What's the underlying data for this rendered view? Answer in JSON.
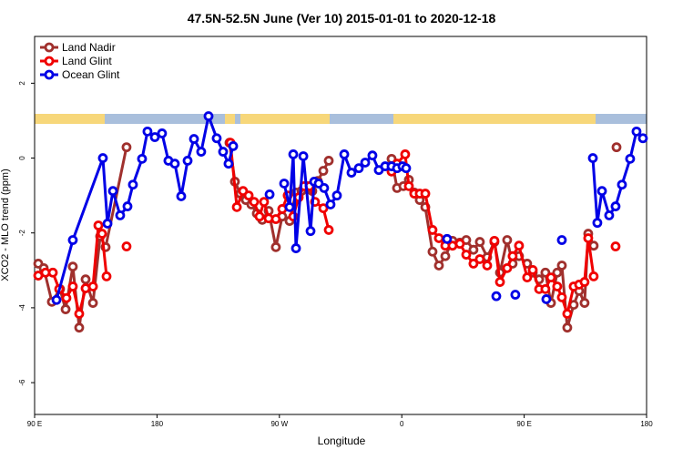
{
  "chart_data": {
    "type": "line",
    "title": "47.5N-52.5N June (Ver 10)   2015-01-01 to 2020-12-18",
    "x_label": "Longitude",
    "y_label": "XCO2 - MLO trend (ppm)",
    "xlim": [
      90,
      540
    ],
    "xticks": [
      {
        "value": 90,
        "label": "90 E"
      },
      {
        "value": 180,
        "label": "180"
      },
      {
        "value": 270,
        "label": "90 W"
      },
      {
        "value": 360,
        "label": "0"
      },
      {
        "value": 450,
        "label": "90 E"
      },
      {
        "value": 540,
        "label": "180"
      }
    ],
    "ylim": [
      -6.85,
      3.25
    ],
    "yticks": [
      -6,
      -4,
      -2,
      0,
      2
    ],
    "grid": false,
    "legend": "top-left",
    "series": [
      {
        "name": "Land Nadir",
        "color": "#a0302d",
        "x": [
          92.7,
          96.7,
          102.7,
          108.7,
          112.8,
          118.1,
          122.8,
          127.5,
          132.9,
          138.2,
          142.2,
          157.6,
          null,
          233.3,
          237.3,
          241.3,
          245.3,
          249.4,
          253.4,
          257.4,
          262.1,
          267.4,
          272.1,
          277.5,
          282.2,
          286.2,
          290.2,
          294.2,
          298.2,
          302.3,
          306.3,
          null,
          352.5,
          356.5,
          361.2,
          365.2,
          369.2,
          373.2,
          377.3,
          382.6,
          387.3,
          392.0,
          397.3,
          402.7,
          407.4,
          412.7,
          417.4,
          422.8,
          428.1,
          432.2,
          437.5,
          441.5,
          446.2,
          452.2,
          456.3,
          461.0,
          465.6,
          469.7,
          474.3,
          477.7,
          481.7,
          486.4,
          490.4,
          494.4,
          497.1,
          501.1,
          null,
          517.9
        ],
        "values": [
          -2.82,
          -2.94,
          -3.84,
          -3.5,
          -4.04,
          -2.9,
          -4.53,
          -3.24,
          -3.87,
          -2.09,
          -2.38,
          0.29,
          null,
          0.41,
          -0.63,
          -0.95,
          -1.12,
          -1.24,
          -1.48,
          -1.65,
          -1.41,
          -2.38,
          -1.56,
          -1.68,
          -0.92,
          -0.88,
          -0.75,
          -0.88,
          -0.61,
          -0.34,
          -0.07,
          null,
          -0.02,
          -0.8,
          -0.75,
          -0.58,
          -0.92,
          -1.12,
          -1.31,
          -2.5,
          -2.87,
          -2.62,
          -2.21,
          -2.26,
          -2.19,
          -2.45,
          -2.24,
          -2.65,
          -2.24,
          -3.06,
          -2.19,
          -2.82,
          -2.62,
          -2.82,
          -3.06,
          -3.24,
          -3.06,
          -3.87,
          -3.06,
          -2.87,
          -4.53,
          -3.92,
          -3.55,
          -3.87,
          -2.02,
          -2.34,
          null,
          0.29
        ]
      },
      {
        "name": "Land Glint",
        "color": "#f00000",
        "x": [
          92.7,
          98.0,
          103.4,
          108.1,
          113.4,
          118.1,
          122.8,
          127.5,
          132.9,
          136.9,
          139.6,
          142.9,
          null,
          157.6,
          null,
          234.0,
          238.7,
          243.3,
          247.4,
          251.4,
          255.4,
          258.7,
          262.1,
          267.4,
          272.1,
          276.1,
          280.2,
          284.2,
          288.2,
          292.2,
          296.2,
          302.3,
          306.3,
          null,
          352.5,
          356.5,
          362.5,
          365.2,
          369.2,
          373.2,
          377.3,
          382.6,
          387.3,
          392.0,
          397.3,
          402.7,
          407.4,
          412.7,
          417.4,
          422.8,
          428.1,
          432.2,
          437.5,
          441.5,
          446.2,
          452.2,
          456.3,
          461.0,
          465.6,
          469.7,
          474.3,
          477.7,
          481.7,
          486.4,
          490.4,
          494.4,
          497.1,
          501.1,
          null,
          517.2
        ],
        "values": [
          -3.14,
          -3.06,
          -3.06,
          -3.5,
          -3.74,
          -3.43,
          -4.16,
          -3.48,
          -3.43,
          -1.8,
          -2.02,
          -3.16,
          null,
          -2.36,
          null,
          0.41,
          -1.31,
          -0.88,
          -1.0,
          -1.17,
          -1.56,
          -1.17,
          -1.61,
          -1.63,
          -1.36,
          -1.0,
          -1.56,
          -1.05,
          -0.75,
          -0.75,
          -1.17,
          -1.34,
          -1.92,
          null,
          -0.36,
          -0.15,
          0.1,
          -0.75,
          -0.95,
          -0.95,
          -0.95,
          -1.92,
          -2.14,
          -2.34,
          -2.34,
          -2.29,
          -2.58,
          -2.82,
          -2.7,
          -2.87,
          -2.21,
          -3.31,
          -2.94,
          -2.62,
          -2.34,
          -3.19,
          -2.99,
          -3.5,
          -3.5,
          -3.19,
          -3.43,
          -3.72,
          -4.16,
          -3.43,
          -3.38,
          -3.31,
          -2.14,
          -3.16,
          null,
          -2.36
        ]
      },
      {
        "name": "Ocean Glint",
        "color": "#0000e6",
        "x": [
          106.1,
          118.1,
          140.2,
          143.6,
          147.6,
          152.9,
          158.3,
          162.3,
          169.0,
          173.0,
          178.4,
          183.7,
          188.4,
          193.1,
          197.8,
          202.5,
          207.2,
          212.5,
          217.9,
          223.9,
          228.6,
          232.6,
          236.0,
          null,
          262.8,
          null,
          273.5,
          277.5,
          280.2,
          282.2,
          287.6,
          292.9,
          295.6,
          298.9,
          302.9,
          307.6,
          312.3,
          317.7,
          323.0,
          328.4,
          333.1,
          338.4,
          343.1,
          347.8,
          352.5,
          356.5,
          360.5,
          363.2,
          null,
          393.3,
          null,
          429.5,
          null,
          443.5,
          null,
          466.3,
          null,
          477.7,
          null,
          500.5,
          503.8,
          507.2,
          512.5,
          517.2,
          521.9,
          527.9,
          532.6,
          537.3
        ],
        "values": [
          -3.79,
          -2.19,
          0.0,
          -1.75,
          -0.88,
          -1.53,
          -1.29,
          -0.71,
          -0.02,
          0.71,
          0.56,
          0.66,
          -0.07,
          -0.15,
          -1.02,
          -0.07,
          0.51,
          0.17,
          1.12,
          0.53,
          0.17,
          -0.15,
          0.32,
          null,
          -0.97,
          null,
          -0.68,
          -1.31,
          0.1,
          -2.41,
          0.05,
          -1.95,
          -0.63,
          -0.68,
          -0.8,
          -1.24,
          -1.0,
          0.1,
          -0.39,
          -0.27,
          -0.12,
          0.07,
          -0.32,
          -0.22,
          -0.22,
          -0.27,
          -0.22,
          -0.27,
          null,
          -2.16,
          null,
          -3.69,
          null,
          -3.65,
          null,
          -3.77,
          null,
          -2.19,
          null,
          0.0,
          -1.73,
          -0.88,
          -1.53,
          -1.29,
          -0.71,
          -0.02,
          0.71,
          0.53
        ]
      }
    ]
  }
}
